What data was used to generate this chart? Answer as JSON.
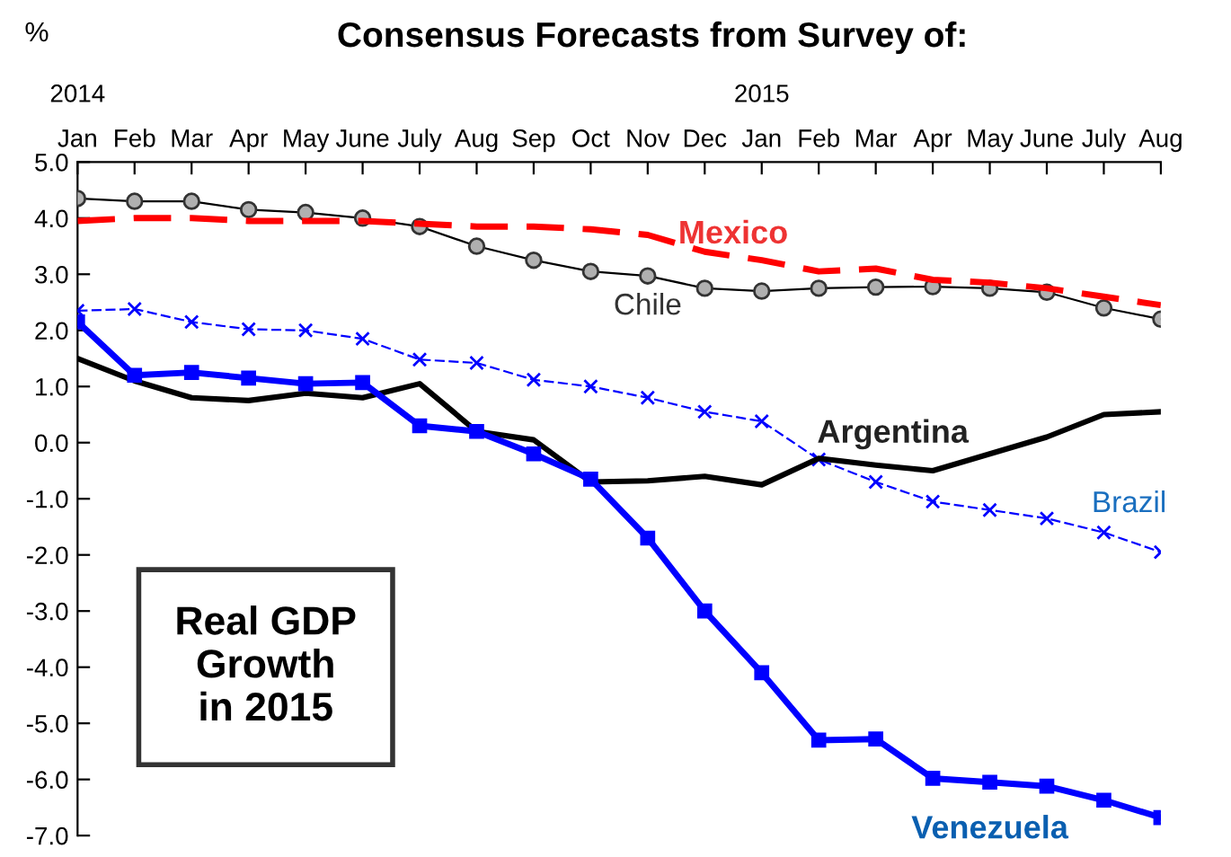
{
  "chart_data": {
    "type": "line",
    "title": "Consensus Forecasts from Survey of:",
    "ylabel": "%",
    "categories": [
      "Jan",
      "Feb",
      "Mar",
      "Apr",
      "May",
      "June",
      "July",
      "Aug",
      "Sep",
      "Oct",
      "Nov",
      "Dec",
      "Jan",
      "Feb",
      "Mar",
      "Apr",
      "May",
      "June",
      "July",
      "Aug"
    ],
    "annotations": [
      "2014",
      "2015",
      "Real GDP\nGrowth\nin 2015"
    ],
    "series": [
      {
        "name": "Chile",
        "color": "#000000",
        "marker": "circle",
        "line_style": "solid",
        "values": [
          4.35,
          4.3,
          4.3,
          4.15,
          4.1,
          4.0,
          3.85,
          3.5,
          3.25,
          3.05,
          2.97,
          2.75,
          2.7,
          2.75,
          2.77,
          2.78,
          2.75,
          2.68,
          2.4,
          2.2
        ]
      },
      {
        "name": "Mexico",
        "color": "#ff0000",
        "marker": "none",
        "line_style": "dashed",
        "values": [
          3.95,
          4.0,
          4.0,
          3.95,
          3.95,
          3.95,
          3.9,
          3.85,
          3.85,
          3.8,
          3.7,
          3.4,
          3.25,
          3.05,
          3.1,
          2.9,
          2.85,
          2.75,
          2.6,
          2.45
        ]
      },
      {
        "name": "Brazil",
        "color": "#0000ff",
        "marker": "cross",
        "line_style": "dashed",
        "values": [
          2.35,
          2.38,
          2.15,
          2.02,
          2.0,
          1.85,
          1.48,
          1.42,
          1.12,
          1.0,
          0.8,
          0.55,
          0.38,
          -0.3,
          -0.7,
          -1.05,
          -1.2,
          -1.35,
          -1.6,
          -1.95
        ]
      },
      {
        "name": "Argentina",
        "color": "#000000",
        "marker": "none",
        "line_style": "solid",
        "values": [
          1.5,
          1.1,
          0.8,
          0.75,
          0.88,
          0.8,
          1.05,
          0.2,
          0.05,
          -0.7,
          -0.68,
          -0.6,
          -0.75,
          -0.28,
          -0.4,
          -0.5,
          -0.2,
          0.1,
          0.5,
          0.55
        ]
      },
      {
        "name": "Venezuela",
        "color": "#0000ff",
        "marker": "square",
        "line_style": "solid",
        "values": [
          2.15,
          1.2,
          1.25,
          1.15,
          1.05,
          1.07,
          0.3,
          0.2,
          -0.2,
          -0.65,
          -1.7,
          -3.0,
          -4.1,
          -5.3,
          -5.28,
          -5.98,
          -6.05,
          -6.12,
          -6.37,
          -6.68
        ]
      }
    ],
    "ylim": [
      -7,
      5
    ],
    "yticks": [
      {
        "value": -7,
        "label": "-7.0"
      },
      {
        "value": -6,
        "label": "-6.0"
      },
      {
        "value": -5,
        "label": "-5.0"
      },
      {
        "value": -4,
        "label": "-4.0"
      },
      {
        "value": -3,
        "label": "-3.0"
      },
      {
        "value": -2,
        "label": "-2.0"
      },
      {
        "value": -1,
        "label": "-1.0"
      },
      {
        "value": 0,
        "label": "0.0"
      },
      {
        "value": 1,
        "label": "1.0"
      },
      {
        "value": 2,
        "label": "2.0"
      },
      {
        "value": 3,
        "label": "3.0"
      },
      {
        "value": 4,
        "label": "4.0"
      },
      {
        "value": 5,
        "label": "5.0"
      }
    ],
    "grid": false,
    "legend": false
  }
}
